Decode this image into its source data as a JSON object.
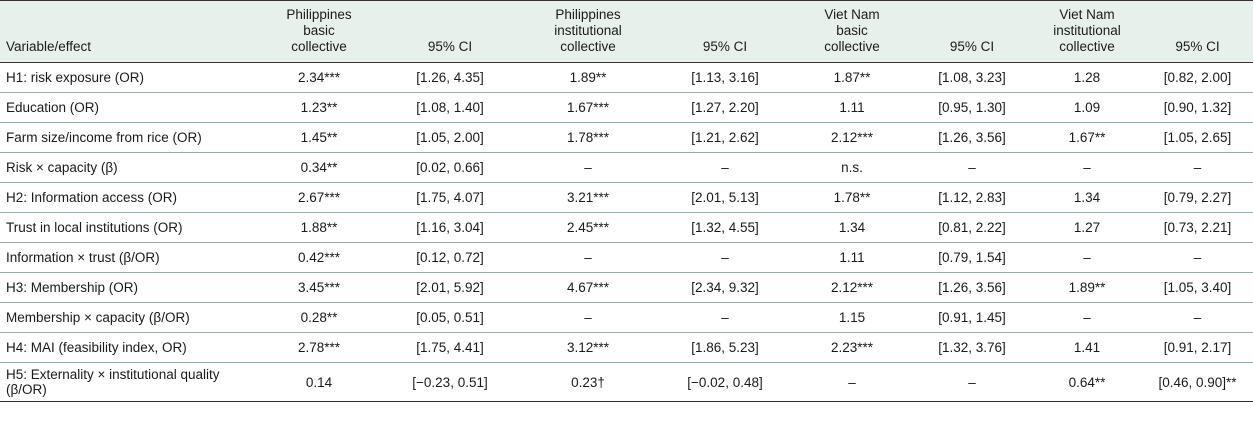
{
  "table": {
    "headers": [
      [
        "Variable/effect"
      ],
      [
        "Philippines",
        "basic",
        "collective"
      ],
      [
        "95% CI"
      ],
      [
        "Philippines",
        "institutional",
        "collective"
      ],
      [
        "95% CI"
      ],
      [
        "Viet Nam",
        "basic",
        "collective"
      ],
      [
        "95% CI"
      ],
      [
        "Viet Nam",
        "institutional",
        "collective"
      ],
      [
        "95% CI"
      ]
    ],
    "rows": [
      [
        "H1: risk exposure (OR)",
        "2.34***",
        "[1.26, 4.35]",
        "1.89**",
        "[1.13, 3.16]",
        "1.87**",
        "[1.08, 3.23]",
        "1.28",
        "[0.82, 2.00]"
      ],
      [
        "Education (OR)",
        "1.23**",
        "[1.08, 1.40]",
        "1.67***",
        "[1.27, 2.20]",
        "1.11",
        "[0.95, 1.30]",
        "1.09",
        "[0.90, 1.32]"
      ],
      [
        "Farm size/income from rice (OR)",
        "1.45**",
        "[1.05, 2.00]",
        "1.78***",
        "[1.21, 2.62]",
        "2.12***",
        "[1.26, 3.56]",
        "1.67**",
        "[1.05, 2.65]"
      ],
      [
        "Risk × capacity (β)",
        "0.34**",
        "[0.02, 0.66]",
        "–",
        "–",
        "n.s.",
        "–",
        "–",
        "–"
      ],
      [
        "H2: Information access (OR)",
        "2.67***",
        "[1.75, 4.07]",
        "3.21***",
        "[2.01, 5.13]",
        "1.78**",
        "[1.12, 2.83]",
        "1.34",
        "[0.79, 2.27]"
      ],
      [
        "Trust in local institutions (OR)",
        "1.88**",
        "[1.16, 3.04]",
        "2.45***",
        "[1.32, 4.55]",
        "1.34",
        "[0.81, 2.22]",
        "1.27",
        "[0.73, 2.21]"
      ],
      [
        "Information × trust (β/OR)",
        "0.42***",
        "[0.12, 0.72]",
        "–",
        "–",
        "1.11",
        "[0.79, 1.54]",
        "–",
        "–"
      ],
      [
        "H3: Membership (OR)",
        "3.45***",
        "[2.01, 5.92]",
        "4.67***",
        "[2.34, 9.32]",
        "2.12***",
        "[1.26, 3.56]",
        "1.89**",
        "[1.05, 3.40]"
      ],
      [
        "Membership × capacity (β/OR)",
        "0.28**",
        "[0.05, 0.51]",
        "–",
        "–",
        "1.15",
        "[0.91, 1.45]",
        "–",
        "–"
      ],
      [
        "H4: MAI (feasibility index, OR)",
        "2.78***",
        "[1.75, 4.41]",
        "3.12***",
        "[1.86, 5.23]",
        "2.23***",
        "[1.32, 3.76]",
        "1.41",
        "[0.91, 2.17]"
      ],
      [
        "H5: Externality × institutional quality (β/OR)",
        "0.14",
        "[−0.23, 0.51]",
        "0.23†",
        "[−0.02, 0.48]",
        "–",
        "–",
        "0.64**",
        "[0.46, 0.90]**"
      ]
    ]
  }
}
